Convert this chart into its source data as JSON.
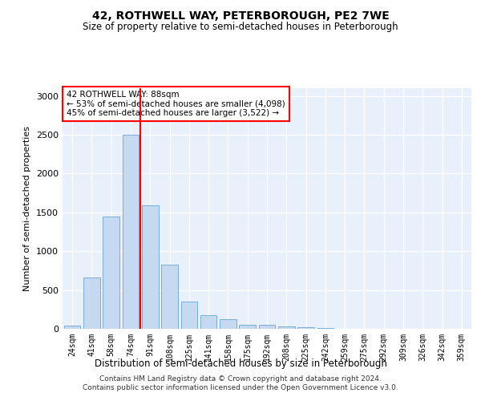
{
  "title": "42, ROTHWELL WAY, PETERBOROUGH, PE2 7WE",
  "subtitle": "Size of property relative to semi-detached houses in Peterborough",
  "xlabel": "Distribution of semi-detached houses by size in Peterborough",
  "ylabel": "Number of semi-detached properties",
  "bar_color": "#c5d9f0",
  "bar_edge_color": "#7baed4",
  "background_color": "#e8f0fb",
  "grid_color": "#ffffff",
  "categories": [
    "24sqm",
    "41sqm",
    "58sqm",
    "74sqm",
    "91sqm",
    "108sqm",
    "125sqm",
    "141sqm",
    "158sqm",
    "175sqm",
    "192sqm",
    "208sqm",
    "225sqm",
    "242sqm",
    "259sqm",
    "275sqm",
    "292sqm",
    "309sqm",
    "326sqm",
    "342sqm",
    "359sqm"
  ],
  "values": [
    45,
    660,
    1450,
    2500,
    1590,
    830,
    350,
    175,
    120,
    55,
    50,
    35,
    20,
    15,
    5,
    5,
    5,
    5,
    5,
    5,
    5
  ],
  "property_bin_index": 4,
  "annotation_title": "42 ROTHWELL WAY: 88sqm",
  "annotation_line1": "← 53% of semi-detached houses are smaller (4,098)",
  "annotation_line2": "45% of semi-detached houses are larger (3,522) →",
  "footer_line1": "Contains HM Land Registry data © Crown copyright and database right 2024.",
  "footer_line2": "Contains public sector information licensed under the Open Government Licence v3.0.",
  "ylim": [
    0,
    3100
  ],
  "yticks": [
    0,
    500,
    1000,
    1500,
    2000,
    2500,
    3000
  ]
}
